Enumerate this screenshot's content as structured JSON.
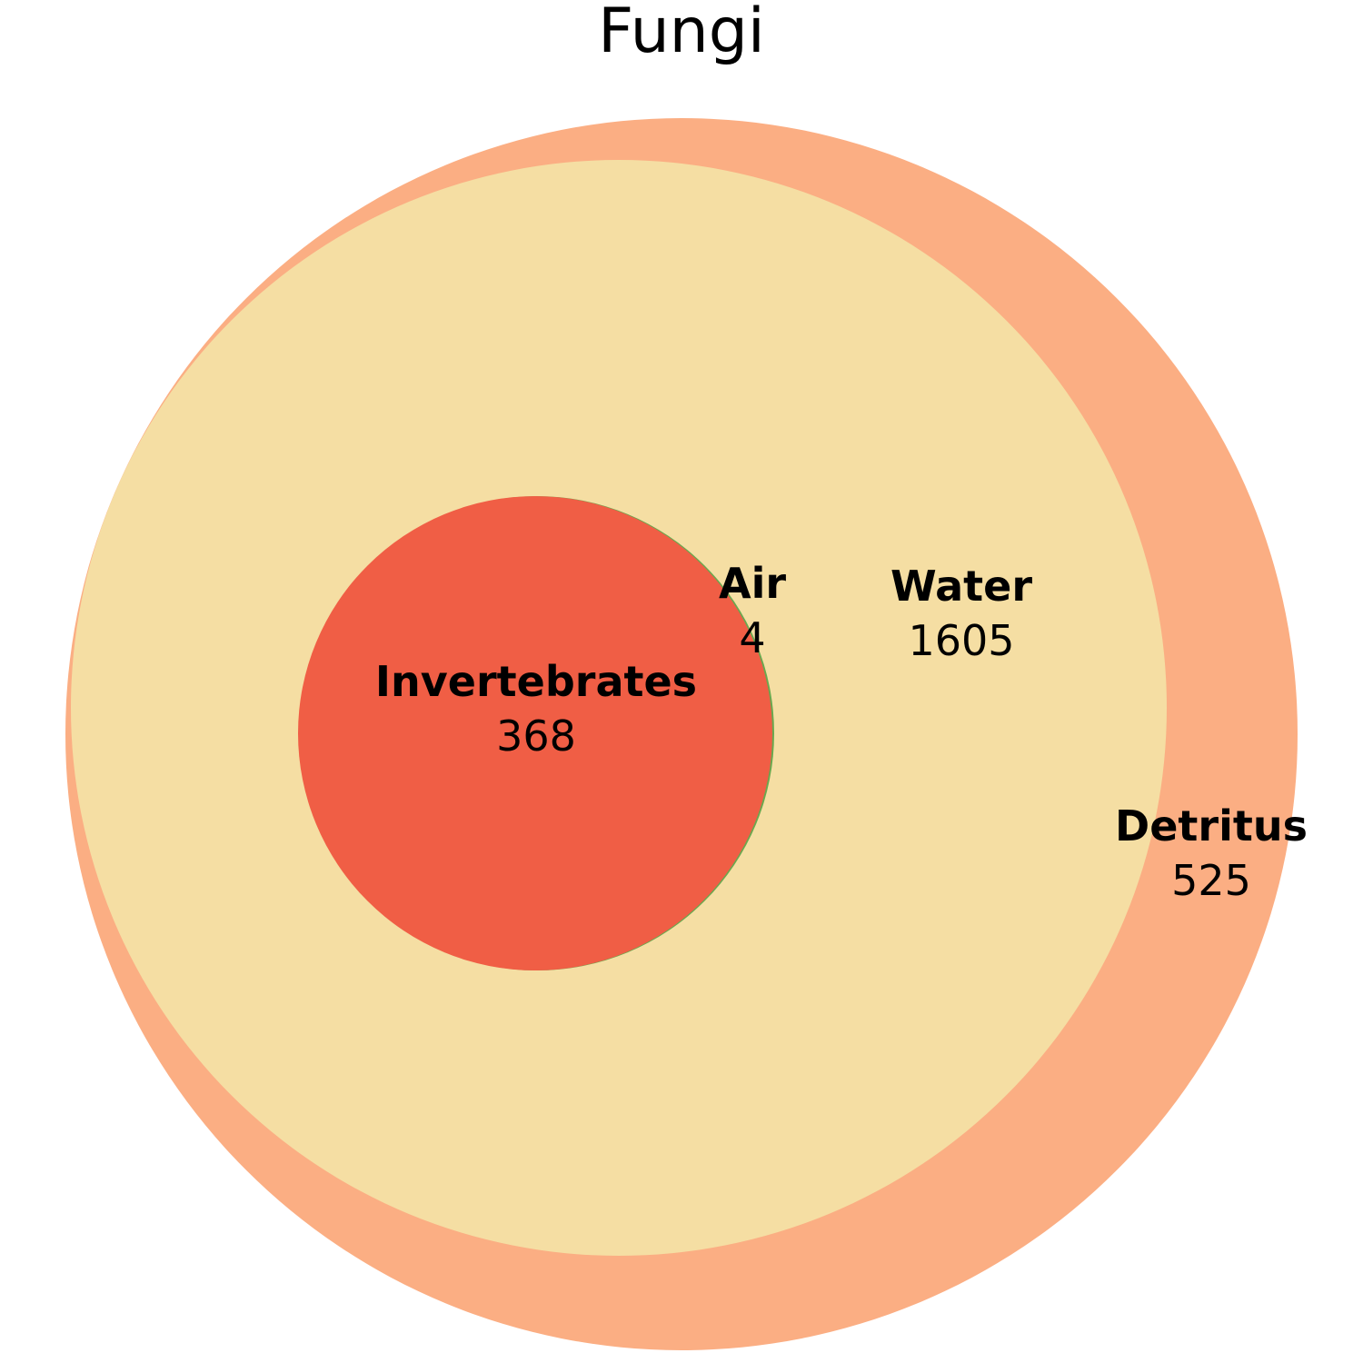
{
  "title": "Fungi",
  "sets": {
    "detritus": {
      "label": "Detritus",
      "count": "525",
      "color": "#fbae83"
    },
    "water": {
      "label": "Water",
      "count": "1605",
      "color": "#f5dea3"
    },
    "invertebrates": {
      "label": "Invertebrates",
      "count": "368",
      "color": "#f05e45"
    },
    "air": {
      "label": "Air",
      "count": "4",
      "color": "#6aa84f"
    }
  }
}
